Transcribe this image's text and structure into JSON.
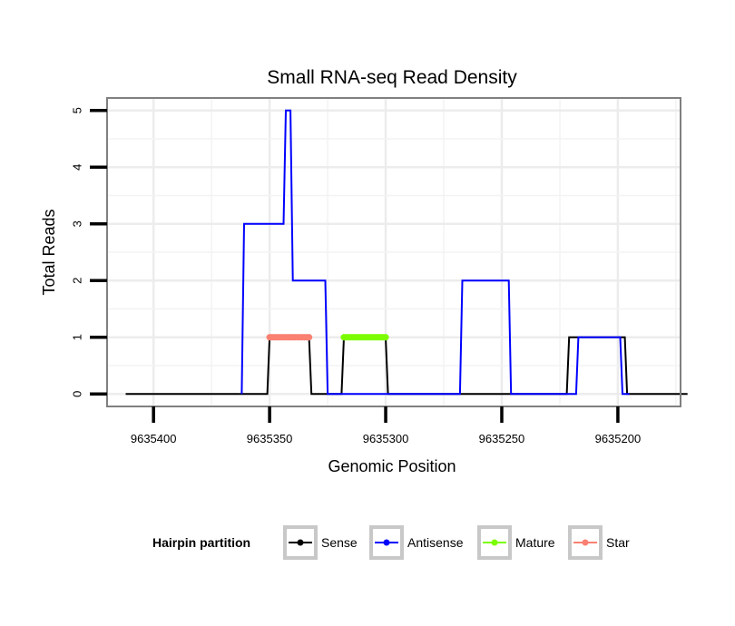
{
  "chart_data": {
    "type": "line",
    "title": "Small RNA-seq Read Density",
    "xlabel": "Genomic Position",
    "ylabel": "Total Reads",
    "x_reversed": true,
    "xlim": [
      9635420,
      9635173
    ],
    "ylim": [
      -0.22,
      5.22
    ],
    "x_ticks": [
      9635400,
      9635350,
      9635300,
      9635250,
      9635200
    ],
    "x_tick_labels": [
      "9635400",
      "9635350",
      "9635300",
      "9635250",
      "9635200"
    ],
    "y_ticks": [
      0,
      1,
      2,
      3,
      4,
      5
    ],
    "y_tick_labels": [
      "0",
      "1",
      "2",
      "3",
      "4",
      "5"
    ],
    "grid": true,
    "legend": {
      "title": "Hairpin partition",
      "position": "bottom",
      "entries": [
        {
          "name": "Sense",
          "color": "#000000"
        },
        {
          "name": "Antisense",
          "color": "#0000ff"
        },
        {
          "name": "Mature",
          "color": "#7cfc00"
        },
        {
          "name": "Star",
          "color": "#fa8072"
        }
      ]
    },
    "series": [
      {
        "name": "Sense",
        "color": "#000000",
        "style": "line",
        "x": [
          9635412,
          9635351,
          9635350,
          9635333,
          9635332,
          9635319,
          9635318,
          9635300,
          9635299,
          9635222,
          9635221,
          9635197,
          9635196,
          9635170
        ],
        "y": [
          0,
          0,
          1,
          1,
          0,
          0,
          1,
          1,
          0,
          0,
          1,
          1,
          0,
          0
        ]
      },
      {
        "name": "Antisense",
        "color": "#0000ff",
        "style": "line",
        "x": [
          9635362,
          9635361,
          9635344,
          9635343,
          9635341,
          9635340,
          9635326,
          9635325,
          9635268,
          9635267,
          9635247,
          9635246,
          9635218,
          9635217,
          9635199,
          9635198,
          9635195
        ],
        "y": [
          0,
          3,
          3,
          5,
          5,
          2,
          2,
          0,
          0,
          2,
          2,
          0,
          0,
          1,
          1,
          0,
          0
        ]
      },
      {
        "name": "Mature",
        "color": "#7cfc00",
        "style": "points",
        "x_range": [
          9635318,
          9635300
        ],
        "y": 1
      },
      {
        "name": "Star",
        "color": "#fa8072",
        "style": "points",
        "x_range": [
          9635350,
          9635333
        ],
        "y": 1
      }
    ]
  }
}
